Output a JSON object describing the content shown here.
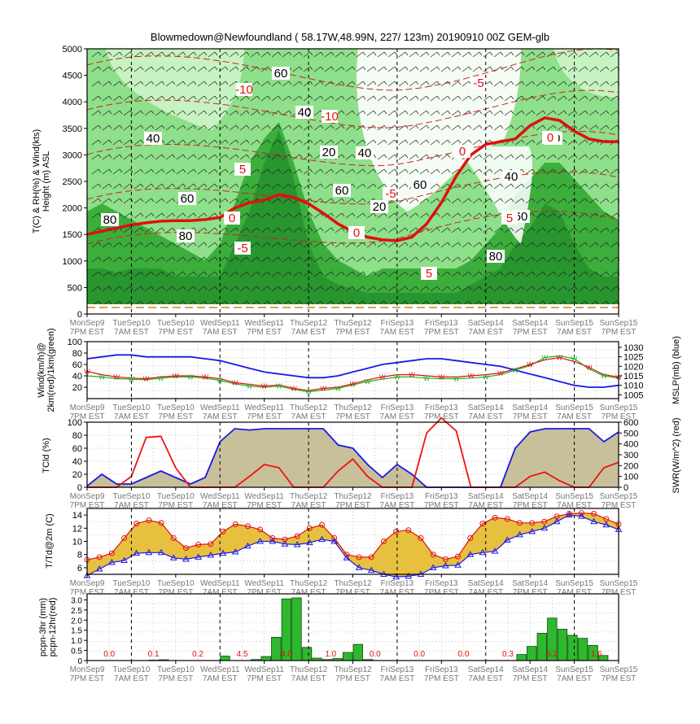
{
  "title": "Blowmedown@Newfoundland ( 58.17W,48.99N, 227/ 123m)  20190910  00Z  GEM-glb",
  "time_labels": [
    [
      "MonSep9",
      "7PM EST"
    ],
    [
      "TueSep10",
      "7AM EST"
    ],
    [
      "TueSep10",
      "7PM EST"
    ],
    [
      "WedSep11",
      "7AM EST"
    ],
    [
      "WedSep11",
      "7PM EST"
    ],
    [
      "ThuSep12",
      "7AM EST"
    ],
    [
      "ThuSep12",
      "7PM EST"
    ],
    [
      "FriSep13",
      "7AM EST"
    ],
    [
      "FriSep13",
      "7PM EST"
    ],
    [
      "SatSep14",
      "7AM EST"
    ],
    [
      "SatSep14",
      "7PM EST"
    ],
    [
      "SunSep15",
      "7AM EST"
    ],
    [
      "SunSep15",
      "7PM EST"
    ]
  ],
  "colors": {
    "rh_light": "#cdf5c8",
    "rh_mid": "#8ee08a",
    "rh_dark": "#3cae3c",
    "rh_darker": "#1f8a2a",
    "temp_line": "#e01010",
    "mslp": "#1a1ae6",
    "wind_red": "#e01010",
    "wind_green": "#20b020",
    "tcld_fill": "#c8c09a",
    "tcld_line": "#1a1ae6",
    "swr": "#ee1111",
    "td_fill": "#e8c040",
    "precip_bar": "#2eb82e"
  },
  "chart_data": [
    {
      "type": "heatmap",
      "name": "cross-section",
      "ylabel": "T(C) & RH(%) & Wind(kts)\nHeight (m) ASL",
      "ylim": [
        0,
        5000
      ],
      "y_ticks": [
        "0",
        "500",
        "1000",
        "1500",
        "2000",
        "2500",
        "3000",
        "3500",
        "4000",
        "4500",
        "5000"
      ],
      "freezing_level_m": [
        1500,
        1560,
        1620,
        1680,
        1720,
        1750,
        1760,
        1760,
        1780,
        1820,
        2000,
        2100,
        2150,
        2250,
        2200,
        2080,
        1900,
        1700,
        1550,
        1450,
        1400,
        1380,
        1450,
        1700,
        2100,
        2600,
        3000,
        3200,
        3250,
        3300,
        3550,
        3700,
        3650,
        3450,
        3300,
        3250,
        3250
      ],
      "contour_labels": [
        "80",
        "40",
        "60",
        "80",
        "60",
        "40",
        "20",
        "40",
        "60",
        "20",
        "60",
        "80",
        "20",
        "40",
        "60"
      ],
      "temp_labels": [
        "0",
        "-5",
        "-10",
        "5",
        "-10",
        "0",
        "-5",
        "5",
        "0",
        "-5",
        "5",
        "0"
      ]
    },
    {
      "type": "line",
      "name": "wind-mslp",
      "ylabel": "Wind(km/h)@\n2km(red)/1km(green)",
      "y2label": "MSLP(mb) (blue)",
      "ylim": [
        0,
        100
      ],
      "y_ticks": [
        "20",
        "40",
        "60",
        "80",
        "100"
      ],
      "y2lim": [
        1003,
        1033
      ],
      "y2_ticks": [
        "1005",
        "1010",
        "1015",
        "1020",
        "1025",
        "1030"
      ],
      "series": [
        {
          "name": "Wind 2km",
          "values": [
            48,
            42,
            38,
            36,
            35,
            38,
            40,
            40,
            38,
            35,
            28,
            25,
            22,
            24,
            18,
            14,
            18,
            20,
            26,
            33,
            38,
            42,
            42,
            40,
            38,
            38,
            40,
            42,
            45,
            52,
            60,
            68,
            72,
            65,
            55,
            42,
            38
          ]
        },
        {
          "name": "Wind 1km",
          "values": [
            40,
            38,
            35,
            34,
            33,
            36,
            38,
            38,
            36,
            32,
            26,
            22,
            20,
            22,
            16,
            12,
            15,
            18,
            24,
            30,
            34,
            38,
            38,
            36,
            35,
            35,
            36,
            38,
            42,
            50,
            58,
            72,
            75,
            70,
            52,
            40,
            36
          ]
        },
        {
          "name": "MSLP",
          "values": [
            1024,
            1025,
            1026,
            1026,
            1025,
            1025,
            1025,
            1025,
            1024,
            1023,
            1021,
            1019,
            1017,
            1016,
            1015,
            1014,
            1014,
            1015,
            1017,
            1019,
            1021,
            1022,
            1023,
            1024,
            1024,
            1023,
            1022,
            1021,
            1020,
            1018,
            1016,
            1014,
            1012,
            1010,
            1009,
            1009,
            1010
          ]
        }
      ]
    },
    {
      "type": "area",
      "name": "tcld-swr",
      "ylabel": "TCld (%)",
      "y2label": "SWR(W/m^2) (red)",
      "ylim": [
        0,
        100
      ],
      "y_ticks": [
        "0",
        "20",
        "40",
        "60",
        "80",
        "100"
      ],
      "y2lim": [
        0,
        600
      ],
      "y2_ticks": [
        "0",
        "100",
        "200",
        "300",
        "400",
        "500",
        "600"
      ],
      "series": [
        {
          "name": "TCld",
          "values": [
            2,
            20,
            5,
            5,
            15,
            25,
            15,
            5,
            15,
            70,
            90,
            88,
            90,
            90,
            90,
            90,
            90,
            65,
            60,
            35,
            15,
            35,
            20,
            0,
            0,
            0,
            0,
            0,
            0,
            60,
            85,
            90,
            90,
            90,
            90,
            70,
            85
          ]
        },
        {
          "name": "SWR",
          "values": [
            0,
            0,
            0,
            100,
            460,
            470,
            180,
            0,
            0,
            0,
            0,
            100,
            210,
            180,
            0,
            0,
            0,
            150,
            260,
            100,
            0,
            0,
            0,
            500,
            640,
            520,
            0,
            0,
            0,
            0,
            100,
            140,
            60,
            0,
            0,
            180,
            230
          ]
        }
      ]
    },
    {
      "type": "area",
      "name": "t-td",
      "ylabel": "T/Td@2m (C)",
      "ylim": [
        5,
        15
      ],
      "y_ticks": [
        "6",
        "8",
        "10",
        "12",
        "14"
      ],
      "series": [
        {
          "name": "T",
          "values": [
            7.2,
            7.6,
            8.2,
            10.5,
            12.7,
            13.2,
            12.8,
            10.5,
            9.0,
            9.5,
            9.6,
            11.5,
            12.6,
            12.3,
            11.8,
            10.5,
            10.3,
            10.8,
            12.0,
            12.5,
            10.5,
            8.0,
            7.6,
            7.6,
            10.0,
            11.5,
            11.7,
            10.5,
            8.0,
            7.3,
            7.7,
            10.5,
            12.7,
            13.6,
            13.4,
            12.8,
            12.8,
            13.0,
            13.8,
            14.2,
            14.3,
            14.2,
            13.4,
            12.6
          ]
        },
        {
          "name": "Td",
          "values": [
            4.8,
            5.8,
            6.8,
            7.1,
            8.2,
            8.3,
            8.3,
            7.5,
            7.3,
            7.6,
            7.9,
            8.2,
            8.4,
            9.3,
            10.0,
            10.0,
            9.6,
            9.5,
            9.8,
            10.3,
            10.0,
            7.5,
            6.0,
            5.6,
            5.0,
            4.6,
            4.7,
            5.0,
            6.0,
            6.3,
            6.4,
            8.0,
            8.3,
            8.5,
            10.2,
            11.0,
            11.5,
            12.0,
            13.0,
            14.0,
            13.8,
            13.0,
            12.5,
            11.8
          ]
        }
      ]
    },
    {
      "type": "bar",
      "name": "precipitation",
      "ylabel": "pcpn-3hr (mm)\npcpn-12hr(red)",
      "ylim": [
        0,
        3.3
      ],
      "y_ticks": [
        "0",
        "0.5",
        "1.0",
        "1.5",
        "2.0",
        "2.5",
        "3.0"
      ],
      "values": [
        0,
        0,
        0,
        0,
        0,
        0,
        0.02,
        0.04,
        0,
        0,
        0,
        0,
        0,
        0.22,
        0,
        0,
        0.05,
        0.2,
        1.15,
        3.05,
        3.1,
        0.65,
        0.12,
        0.05,
        0.1,
        0.4,
        0.8,
        0.05,
        0,
        0,
        0,
        0,
        0,
        0,
        0,
        0,
        0,
        0,
        0,
        0,
        0,
        0,
        0.3,
        0.7,
        1.35,
        2.1,
        1.55,
        1.25,
        1.1,
        0.75,
        0.25,
        0
      ],
      "pcpn_12hr_labels": [
        "0.0",
        "0.1",
        "0.2",
        "4.5",
        "4.0",
        "1.0",
        "0.0",
        "0.0",
        "0.0",
        "0.3",
        "6.2",
        "1.6"
      ]
    }
  ]
}
